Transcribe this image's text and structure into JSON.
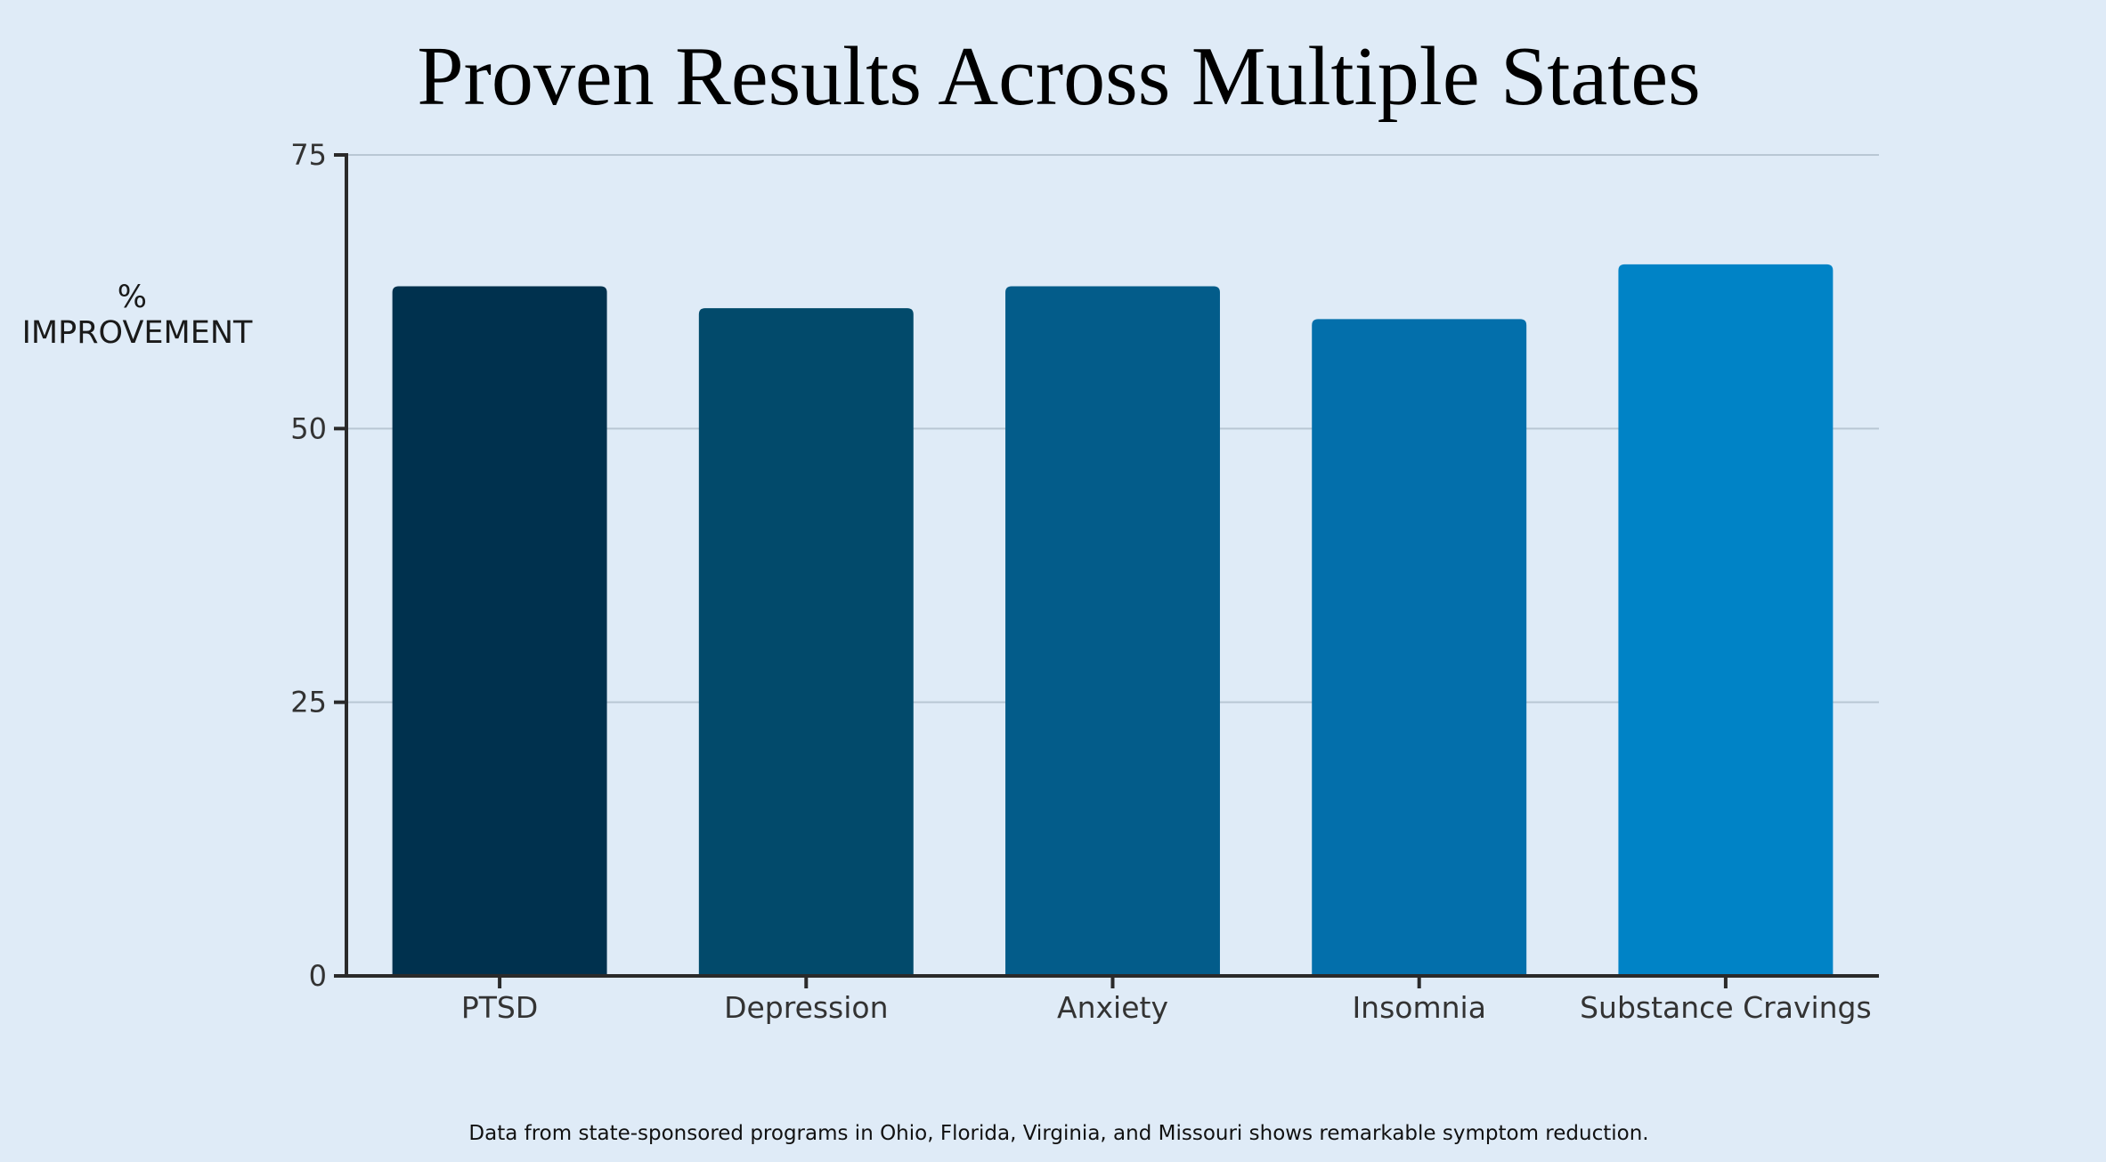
{
  "chart_data": {
    "type": "bar",
    "title": "Proven Results Across Multiple States",
    "ylabel_lines": [
      "%",
      "IMPROVEMENT"
    ],
    "xlabel": "",
    "categories": [
      "PTSD",
      "Depression",
      "Anxiety",
      "Insomnia",
      "Substance Cravings"
    ],
    "values": [
      63,
      61,
      63,
      60,
      65
    ],
    "colors": [
      "#00314e",
      "#024a6b",
      "#035c8a",
      "#036fab",
      "#0083c6"
    ],
    "ylim": [
      0,
      75
    ],
    "yticks": [
      0,
      25,
      50,
      75
    ],
    "grid": true,
    "legend": "none",
    "footnote": "Data from state-sponsored programs in Ohio, Florida, Virginia, and Missouri shows remarkable symptom reduction."
  }
}
